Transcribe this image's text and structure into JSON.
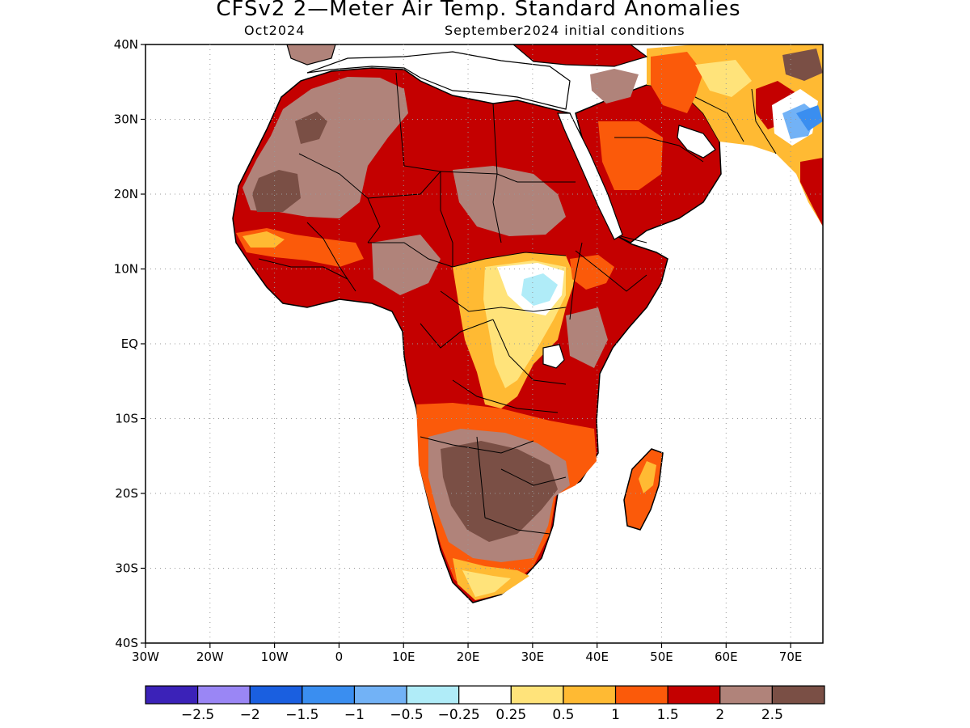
{
  "title": "CFSv2 2—Meter Air Temp. Standard Anomalies",
  "subtitle_left": "Oct2024",
  "subtitle_right": "September2024 initial conditions",
  "map": {
    "lon_range": [
      -30,
      75
    ],
    "lat_range": [
      -40,
      40
    ],
    "grid_lines": "dotted",
    "lat_ticks": [
      {
        "value": 40,
        "label": "40N"
      },
      {
        "value": 30,
        "label": "30N"
      },
      {
        "value": 20,
        "label": "20N"
      },
      {
        "value": 10,
        "label": "10N"
      },
      {
        "value": 0,
        "label": "EQ"
      },
      {
        "value": -10,
        "label": "10S"
      },
      {
        "value": -20,
        "label": "20S"
      },
      {
        "value": -30,
        "label": "30S"
      },
      {
        "value": -40,
        "label": "40S"
      }
    ],
    "lon_ticks": [
      {
        "value": -30,
        "label": "30W"
      },
      {
        "value": -20,
        "label": "20W"
      },
      {
        "value": -10,
        "label": "10W"
      },
      {
        "value": 0,
        "label": "0"
      },
      {
        "value": 10,
        "label": "10E"
      },
      {
        "value": 20,
        "label": "20E"
      },
      {
        "value": 30,
        "label": "30E"
      },
      {
        "value": 40,
        "label": "40E"
      },
      {
        "value": 50,
        "label": "50E"
      },
      {
        "value": 60,
        "label": "60E"
      },
      {
        "value": 70,
        "label": "70E"
      }
    ]
  },
  "colorbar": {
    "colors": [
      "#3b22b8",
      "#9a86f5",
      "#1a5fe0",
      "#3a8ef0",
      "#72b2f6",
      "#b0ecf8",
      "#ffffff",
      "#ffe37a",
      "#ffba33",
      "#fb5a0a",
      "#c40000",
      "#b0837a",
      "#7a4f45"
    ],
    "labels": [
      "−2.5",
      "−2",
      "−1.5",
      "−1",
      "−0.5",
      "−0.25",
      "0.25",
      "0.5",
      "1",
      "1.5",
      "2",
      "2.5"
    ]
  }
}
